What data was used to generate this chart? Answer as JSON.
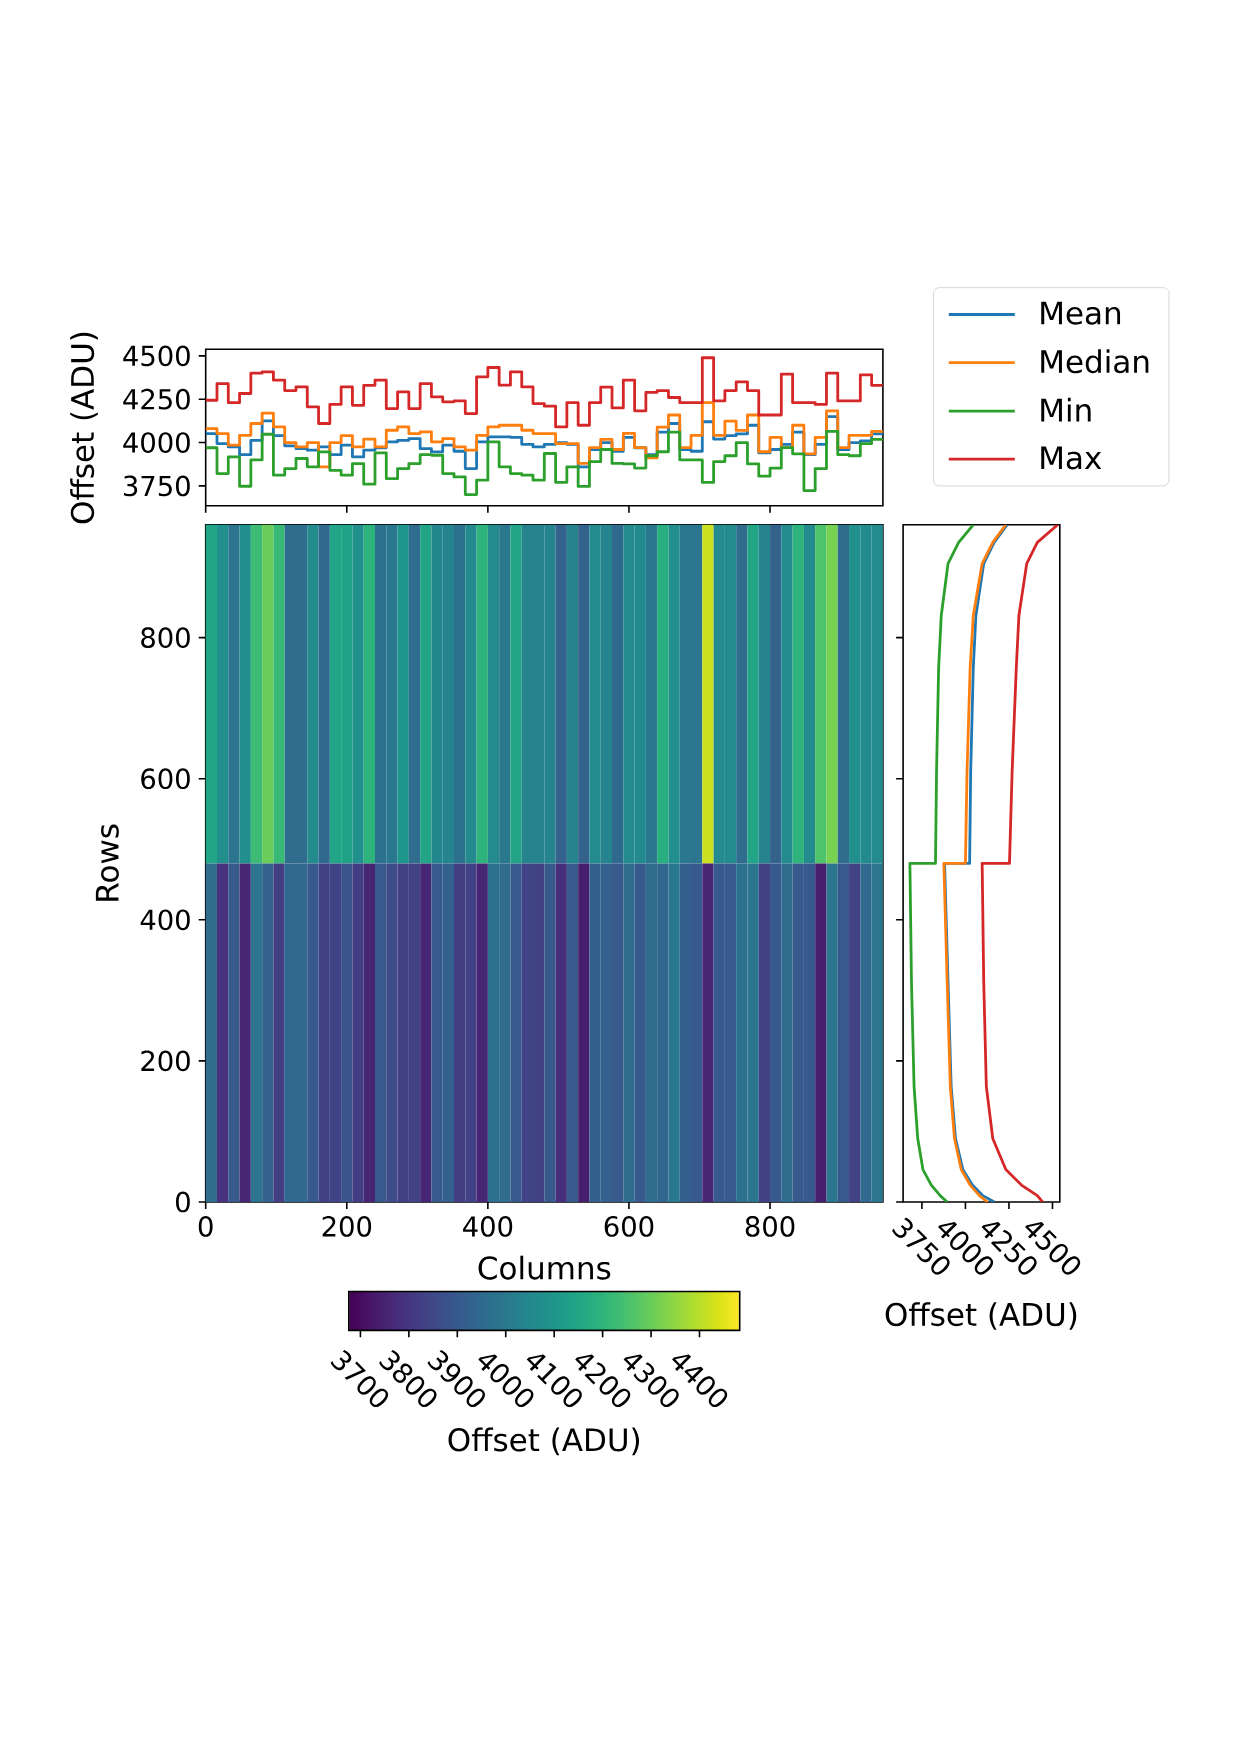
{
  "chart_data": [
    {
      "type": "step",
      "ylabel": "Offset (ADU)",
      "legend": "right",
      "tick_labels": "y",
      "x": [
        0,
        16,
        32,
        48,
        64,
        80,
        96,
        112,
        128,
        144,
        160,
        176,
        192,
        208,
        224,
        240,
        256,
        272,
        288,
        304,
        320,
        336,
        352,
        368,
        384,
        400,
        416,
        432,
        448,
        464,
        480,
        496,
        512,
        528,
        544,
        560,
        576,
        592,
        608,
        624,
        640,
        656,
        672,
        688,
        704,
        720,
        736,
        752,
        768,
        784,
        800,
        816,
        832,
        848,
        864,
        880,
        896,
        912,
        928,
        944,
        960
      ],
      "xlim": [
        0,
        960
      ],
      "xticks": [
        0,
        200,
        400,
        600,
        800
      ],
      "ylim": [
        3636,
        4538
      ],
      "yticks": [
        3750,
        4000,
        4250,
        4500
      ],
      "series": [
        {
          "name": "Mean",
          "color": "#1f77b4",
          "values": [
            4052,
            3994,
            3975,
            3930,
            4013,
            4125,
            4040,
            3981,
            3965,
            3956,
            3975,
            3930,
            3985,
            3917,
            3956,
            3970,
            4004,
            4013,
            4023,
            3965,
            3946,
            3985,
            3950,
            3850,
            4004,
            4033,
            4033,
            4030,
            3990,
            3975,
            3990,
            4000,
            3990,
            3860,
            3960,
            4000,
            3950,
            4030,
            3970,
            3930,
            4060,
            4110,
            3960,
            3950,
            4120,
            4020,
            4040,
            4050,
            4100,
            3940,
            3960,
            3990,
            4060,
            3930,
            3990,
            4150,
            3960,
            4000,
            4010,
            4050,
            4050
          ]
        },
        {
          "name": "Median",
          "color": "#ff7f0e",
          "values": [
            4080,
            4052,
            3985,
            4042,
            4110,
            4170,
            4090,
            4000,
            3975,
            4000,
            3860,
            4000,
            4040,
            3975,
            4020,
            3975,
            4071,
            4090,
            4052,
            4062,
            4004,
            4023,
            3975,
            3956,
            4042,
            4090,
            4100,
            4100,
            4071,
            4052,
            4052,
            3994,
            3994,
            3880,
            3971,
            4018,
            3960,
            4053,
            3971,
            3912,
            4089,
            4159,
            3971,
            4042,
            4230,
            4042,
            4124,
            4070,
            4159,
            3947,
            4030,
            3971,
            4100,
            3935,
            4030,
            4183,
            3971,
            4042,
            4042,
            4065,
            4065
          ]
        },
        {
          "name": "Min",
          "color": "#2ca02c",
          "values": [
            3970,
            3821,
            3917,
            3748,
            3900,
            4048,
            3812,
            3850,
            3908,
            3860,
            3946,
            3840,
            3812,
            3879,
            3760,
            3940,
            3792,
            3850,
            3879,
            3930,
            3927,
            3821,
            3802,
            3700,
            3783,
            4004,
            3860,
            3821,
            3812,
            3783,
            3937,
            3770,
            3860,
            3747,
            3890,
            3960,
            3880,
            3877,
            3853,
            3924,
            3947,
            4060,
            3900,
            3900,
            3770,
            3890,
            3924,
            4000,
            3877,
            3806,
            3853,
            3971,
            3935,
            3723,
            3850,
            4065,
            3930,
            3924,
            3994,
            4018,
            4018
          ]
        },
        {
          "name": "Max",
          "color": "#d62728",
          "values": [
            4244,
            4340,
            4230,
            4283,
            4400,
            4408,
            4360,
            4300,
            4321,
            4206,
            4110,
            4220,
            4321,
            4215,
            4330,
            4360,
            4196,
            4292,
            4196,
            4340,
            4263,
            4235,
            4240,
            4167,
            4379,
            4433,
            4331,
            4408,
            4321,
            4225,
            4210,
            4090,
            4230,
            4100,
            4230,
            4320,
            4200,
            4360,
            4183,
            4290,
            4300,
            4260,
            4230,
            4230,
            4489,
            4240,
            4300,
            4350,
            4300,
            4159,
            4159,
            4395,
            4230,
            4230,
            4220,
            4400,
            4240,
            4240,
            4390,
            4330,
            4330
          ]
        }
      ]
    },
    {
      "type": "heatmap",
      "xlabel": "Columns",
      "ylabel": "Rows",
      "clabel": "Offset (ADU)",
      "x": [
        8,
        24,
        40,
        56,
        72,
        88,
        104,
        120,
        136,
        152,
        168,
        184,
        200,
        216,
        232,
        248,
        264,
        280,
        296,
        312,
        328,
        344,
        360,
        376,
        392,
        408,
        424,
        440,
        456,
        472,
        488,
        504,
        520,
        536,
        552,
        568,
        584,
        600,
        616,
        632,
        648,
        664,
        680,
        696,
        712,
        728,
        744,
        760,
        776,
        792,
        808,
        824,
        840,
        856,
        872,
        888,
        904,
        920,
        936,
        952
      ],
      "y": [
        720,
        240
      ],
      "cells": [
        [
          4150,
          4080,
          3990,
          4080,
          4230,
          4300,
          4220,
          3960,
          3960,
          4060,
          3950,
          4150,
          4140,
          4080,
          4200,
          3980,
          4000,
          4100,
          3960,
          4150,
          4050,
          4040,
          3980,
          4060,
          4200,
          4060,
          4000,
          4150,
          4040,
          4040,
          4040,
          3930,
          4040,
          3930,
          4060,
          4040,
          3950,
          4060,
          4060,
          4000,
          4180,
          4080,
          4000,
          3990,
          4420,
          4060,
          4060,
          3960,
          4150,
          4040,
          3930,
          4060,
          4200,
          4060,
          4260,
          4320,
          3960,
          4080,
          4060,
          4060
        ],
        [
          3960,
          3790,
          3900,
          3760,
          3990,
          3930,
          3820,
          3950,
          3950,
          3900,
          3830,
          3840,
          3880,
          3820,
          3760,
          3900,
          3860,
          3830,
          3830,
          3760,
          3900,
          3920,
          3820,
          3830,
          3760,
          3970,
          3960,
          3900,
          3840,
          3830,
          3900,
          3780,
          3900,
          3740,
          3920,
          3920,
          3900,
          3960,
          3900,
          3960,
          3940,
          4000,
          3920,
          3900,
          3760,
          3900,
          3900,
          3980,
          3990,
          3830,
          3900,
          3960,
          3900,
          3900,
          3740,
          3990,
          3900,
          3830,
          3950,
          3990
        ]
      ],
      "xlim": [
        0,
        960
      ],
      "ylim": [
        0,
        960
      ],
      "xticks": [
        0,
        200,
        400,
        600,
        800
      ],
      "yticks": [
        0,
        200,
        400,
        600,
        800
      ],
      "clim": [
        3676,
        4483
      ],
      "cticks": [
        3700,
        3800,
        3900,
        4000,
        4100,
        4200,
        4300,
        4400
      ]
    },
    {
      "type": "line",
      "xlabel": "Offset (ADU)",
      "tick_labels": "x",
      "xlim": [
        3642,
        4542
      ],
      "xticks": [
        3750,
        4000,
        4250,
        4500
      ],
      "ylim": [
        0,
        960
      ],
      "yticks": [
        0,
        200,
        400,
        600,
        800
      ],
      "series": [
        {
          "color": "#1f77b4",
          "x": [
            4166,
            4100,
            4040,
            3985,
            3943,
            3918,
            3900,
            3880,
            4024,
            4030,
            4045,
            4060,
            4105,
            4165,
            4240
          ],
          "values": [
            0,
            9,
            24,
            46,
            90,
            164,
            313,
            480,
            480,
            609,
            757,
            831,
            905,
            935,
            960
          ]
        },
        {
          "color": "#ff7f0e",
          "x": [
            4126,
            4081,
            4027,
            3976,
            3937,
            3913,
            3895,
            3876,
            4000,
            4009,
            4027,
            4045,
            4096,
            4157,
            4232
          ],
          "values": [
            0,
            9,
            24,
            46,
            90,
            164,
            313,
            480,
            480,
            609,
            757,
            831,
            905,
            935,
            960
          ]
        },
        {
          "color": "#2ca02c",
          "x": [
            3895,
            3855,
            3804,
            3756,
            3726,
            3705,
            3690,
            3681,
            3828,
            3834,
            3846,
            3861,
            3900,
            3961,
            4045
          ],
          "values": [
            0,
            9,
            24,
            46,
            90,
            164,
            313,
            480,
            480,
            609,
            757,
            831,
            905,
            935,
            960
          ]
        },
        {
          "color": "#d62728",
          "x": [
            4443,
            4413,
            4322,
            4232,
            4157,
            4120,
            4105,
            4096,
            4253,
            4268,
            4292,
            4307,
            4352,
            4413,
            4530
          ],
          "values": [
            0,
            9,
            24,
            46,
            90,
            164,
            313,
            480,
            480,
            609,
            757,
            831,
            905,
            935,
            960
          ]
        }
      ]
    }
  ]
}
